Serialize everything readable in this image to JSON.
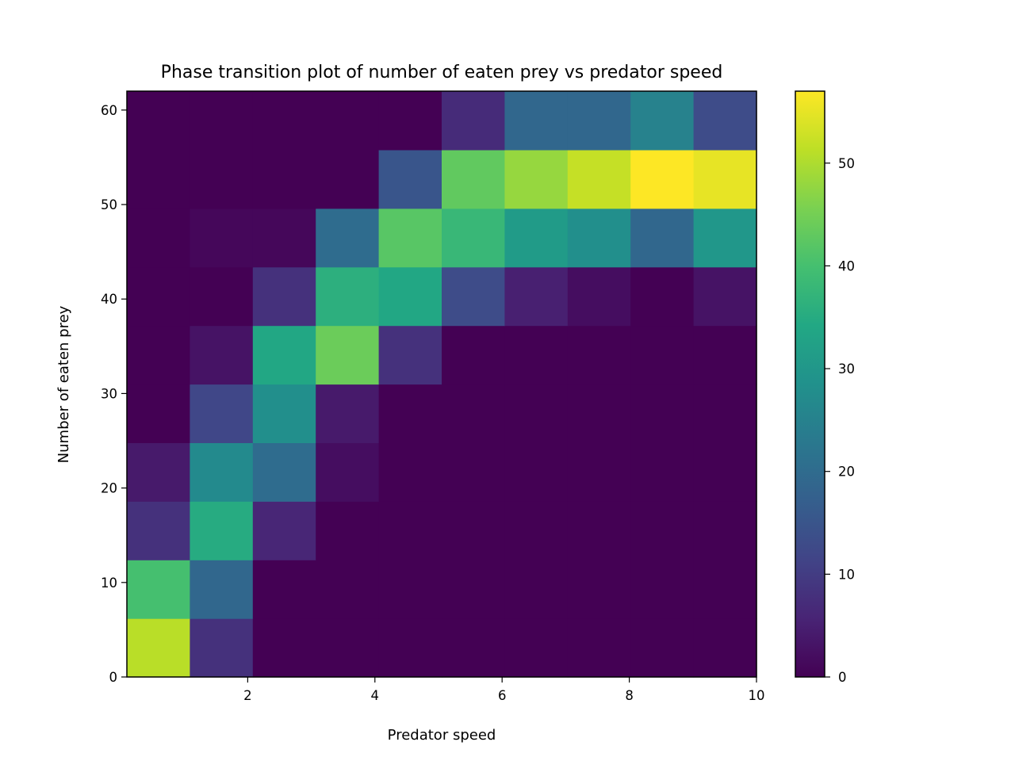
{
  "chart_data": {
    "type": "heatmap",
    "title": "Phase transition plot of number of eaten prey vs predator speed",
    "xlabel": "Predator speed",
    "ylabel": "Number of eaten prey",
    "xlim": [
      0.1,
      10
    ],
    "ylim": [
      0,
      62
    ],
    "x_edges": [
      0.1,
      1.09,
      2.08,
      3.07,
      4.06,
      5.05,
      6.04,
      7.03,
      8.02,
      9.01,
      10
    ],
    "y_edges": [
      0,
      6.2,
      12.4,
      18.6,
      24.8,
      31,
      37.2,
      43.4,
      49.6,
      55.8,
      62
    ],
    "x_ticks": [
      2,
      4,
      6,
      8,
      10
    ],
    "y_ticks": [
      0,
      10,
      20,
      30,
      40,
      50,
      60
    ],
    "colorbar": {
      "min": 0,
      "max": 57,
      "ticks": [
        0,
        10,
        20,
        30,
        40,
        50
      ],
      "colormap": "viridis"
    },
    "grid": false,
    "values": [
      [
        51,
        8,
        0,
        0,
        0,
        0,
        0,
        0,
        0,
        0
      ],
      [
        40,
        19,
        0,
        0,
        0,
        0,
        0,
        0,
        0,
        0
      ],
      [
        8,
        35,
        6,
        0,
        0,
        0,
        0,
        0,
        0,
        0
      ],
      [
        4,
        27,
        20,
        2,
        0,
        0,
        0,
        0,
        0,
        0
      ],
      [
        0,
        12,
        28,
        4,
        0,
        0,
        0,
        0,
        0,
        0
      ],
      [
        0,
        3,
        34,
        44,
        8,
        0,
        0,
        0,
        0,
        0
      ],
      [
        0,
        0,
        8,
        36,
        34,
        13,
        5,
        2,
        0,
        3
      ],
      [
        0,
        1,
        1,
        20,
        42,
        38,
        31,
        28,
        19,
        30
      ],
      [
        0,
        0,
        0,
        0,
        15,
        43,
        48,
        52,
        57,
        55
      ],
      [
        0,
        0,
        0,
        0,
        0,
        7,
        19,
        19,
        25,
        13
      ]
    ]
  }
}
